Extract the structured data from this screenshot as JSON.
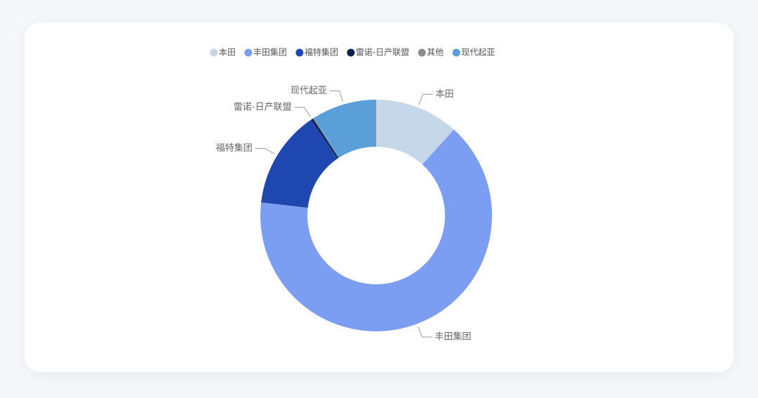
{
  "chart_data": {
    "type": "donut",
    "categories": [
      "本田",
      "丰田集团",
      "福特集团",
      "雷诺-日产联盟",
      "其他",
      "现代起亚"
    ],
    "values": [
      11.7,
      65.1,
      13.7,
      0.3,
      0.1,
      9.1
    ],
    "colors": [
      "#c5d7e8",
      "#7b9ef3",
      "#1f47b0",
      "#0f1f4e",
      "#8c8c8c",
      "#5b9fd8"
    ],
    "legend": "top"
  }
}
